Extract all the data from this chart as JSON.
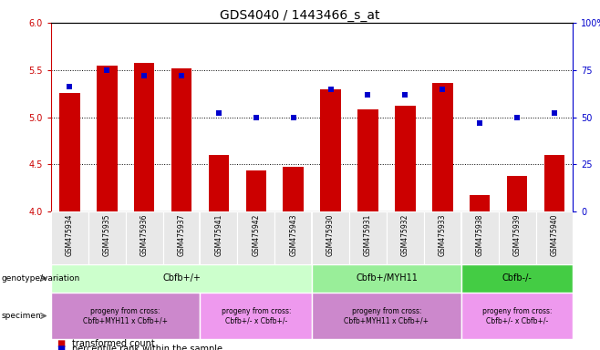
{
  "title": "GDS4040 / 1443466_s_at",
  "samples": [
    "GSM475934",
    "GSM475935",
    "GSM475936",
    "GSM475937",
    "GSM475941",
    "GSM475942",
    "GSM475943",
    "GSM475930",
    "GSM475931",
    "GSM475932",
    "GSM475933",
    "GSM475938",
    "GSM475939",
    "GSM475940"
  ],
  "bar_heights": [
    5.26,
    5.55,
    5.58,
    5.52,
    4.6,
    4.44,
    4.48,
    5.3,
    5.08,
    5.12,
    5.36,
    4.18,
    4.38,
    4.6
  ],
  "dot_values": [
    66,
    75,
    72,
    72,
    52,
    50,
    50,
    65,
    62,
    62,
    65,
    47,
    50,
    52
  ],
  "ylim_left": [
    4.0,
    6.0
  ],
  "ylim_right": [
    0,
    100
  ],
  "yticks_left": [
    4.0,
    4.5,
    5.0,
    5.5,
    6.0
  ],
  "yticks_right": [
    0,
    25,
    50,
    75,
    100
  ],
  "bar_color": "#cc0000",
  "dot_color": "#0000cc",
  "bar_width": 0.55,
  "geno_groups": [
    {
      "label": "Cbfb+/+",
      "start": 0,
      "end": 7,
      "color": "#ccffcc"
    },
    {
      "label": "Cbfb+/MYH11",
      "start": 7,
      "end": 11,
      "color": "#99ee99"
    },
    {
      "label": "Cbfb-/-",
      "start": 11,
      "end": 14,
      "color": "#44cc44"
    }
  ],
  "spec_groups": [
    {
      "label": "progeny from cross:\nCbfb+MYH11 x Cbfb+/+",
      "start": 0,
      "end": 4,
      "color": "#cc88cc"
    },
    {
      "label": "progeny from cross:\nCbfb+/- x Cbfb+/-",
      "start": 4,
      "end": 7,
      "color": "#ee99ee"
    },
    {
      "label": "progeny from cross:\nCbfb+MYH11 x Cbfb+/+",
      "start": 7,
      "end": 11,
      "color": "#cc88cc"
    },
    {
      "label": "progeny from cross:\nCbfb+/- x Cbfb+/-",
      "start": 11,
      "end": 14,
      "color": "#ee99ee"
    }
  ],
  "left_tick_color": "#cc0000",
  "right_tick_color": "#0000cc",
  "title_fontsize": 10,
  "sample_fontsize": 5.5,
  "group_fontsize": 7,
  "spec_fontsize": 5.5,
  "legend_fontsize": 7,
  "tick_fontsize": 7
}
